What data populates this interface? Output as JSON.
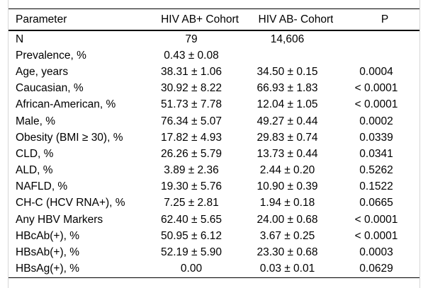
{
  "table": {
    "columns": [
      "Parameter",
      "HIV AB+ Cohort",
      "HIV AB- Cohort",
      "P"
    ],
    "rows": [
      [
        "N",
        "79",
        "14,606",
        ""
      ],
      [
        "Prevalence, %",
        "0.43 ± 0.08",
        "",
        ""
      ],
      [
        "Age, years",
        "38.31 ± 1.06",
        "34.50 ± 0.15",
        "0.0004"
      ],
      [
        "Caucasian, %",
        "30.92 ± 8.22",
        "66.93 ± 1.83",
        "< 0.0001"
      ],
      [
        "African-American, %",
        "51.73 ± 7.78",
        "12.04 ± 1.05",
        "< 0.0001"
      ],
      [
        "Male, %",
        "76.34 ± 5.07",
        "49.27 ± 0.44",
        "0.0002"
      ],
      [
        "Obesity (BMI ≥ 30), %",
        "17.82 ± 4.93",
        "29.83 ± 0.74",
        "0.0339"
      ],
      [
        "CLD, %",
        "26.26 ± 5.79",
        "13.73 ± 0.44",
        "0.0341"
      ],
      [
        "ALD, %",
        "3.89 ± 2.36",
        "2.44 ± 0.20",
        "0.5262"
      ],
      [
        "NAFLD, %",
        "19.30 ± 5.76",
        "10.90 ± 0.39",
        "0.1522"
      ],
      [
        "CH-C (HCV RNA+), %",
        "7.25 ± 2.81",
        "1.94 ± 0.18",
        "0.0665"
      ],
      [
        "Any HBV Markers",
        "62.40 ± 5.65",
        "24.00 ± 0.68",
        "< 0.0001"
      ],
      [
        "HBcAb(+), %",
        "50.95 ± 6.12",
        "3.67 ± 0.25",
        "< 0.0001"
      ],
      [
        "HBsAb(+), %",
        "52.19 ± 5.90",
        "23.30 ± 0.68",
        "0.0003"
      ],
      [
        "HBsAg(+), %",
        "0.00",
        "0.03 ± 0.01",
        "0.0629"
      ]
    ]
  },
  "colors": {
    "text": "#000000",
    "rule": "#000000",
    "side_border": "#d6d6d6",
    "background": "#ffffff"
  }
}
